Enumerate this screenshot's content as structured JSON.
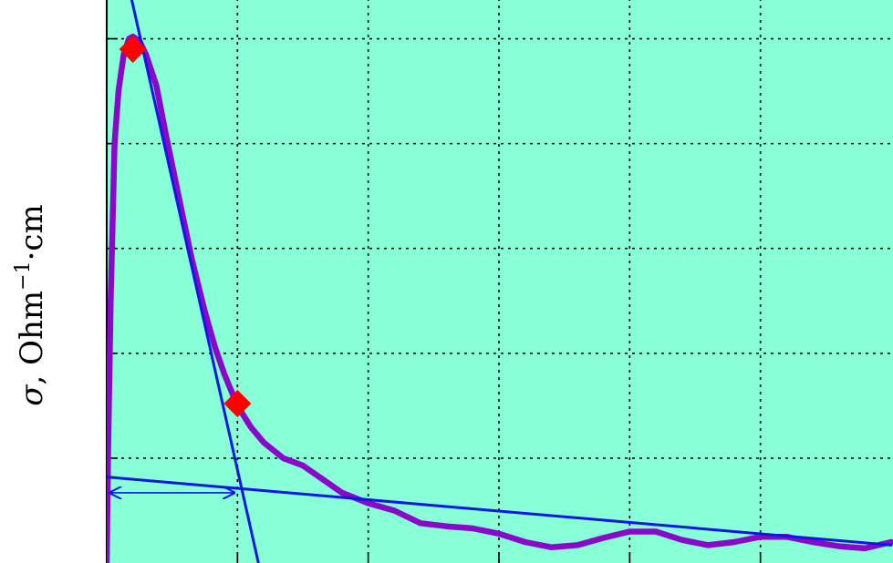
{
  "chart_data": {
    "type": "line",
    "ylabel": {
      "symbol": "σ",
      "text": ", Ohm",
      "superscript": "−1",
      "suffix": "·cm"
    },
    "xlim": [
      0,
      6
    ],
    "ylim": [
      0,
      5.5
    ],
    "grid": true,
    "background": "#88ffd6",
    "series": [
      {
        "color": "#8a08c9",
        "x": [
          0.0,
          0.01,
          0.03,
          0.06,
          0.09,
          0.13,
          0.17,
          0.2,
          0.25,
          0.3,
          0.38,
          0.45,
          0.55,
          0.65,
          0.75,
          0.83,
          0.9,
          1.0,
          1.1,
          1.2,
          1.35,
          1.5,
          1.65,
          1.8,
          2.0,
          2.2,
          2.4,
          2.6,
          2.8,
          3.0,
          3.2,
          3.4,
          3.6,
          3.8,
          4.0,
          4.2,
          4.4,
          4.6,
          4.8,
          5.0,
          5.2,
          5.4,
          5.6,
          5.8,
          6.0
        ],
        "y": [
          0.0,
          1.0,
          2.5,
          4.0,
          4.5,
          4.85,
          5.0,
          5.02,
          4.98,
          4.85,
          4.55,
          4.1,
          3.5,
          2.9,
          2.4,
          2.05,
          1.8,
          1.5,
          1.3,
          1.15,
          1.0,
          0.93,
          0.8,
          0.67,
          0.57,
          0.5,
          0.38,
          0.35,
          0.33,
          0.28,
          0.2,
          0.15,
          0.17,
          0.24,
          0.3,
          0.3,
          0.22,
          0.17,
          0.2,
          0.25,
          0.25,
          0.2,
          0.16,
          0.14,
          0.2
        ]
      },
      {
        "color": "#0a17e6",
        "x": [
          0.15,
          1.16
        ],
        "y": [
          5.6,
          0.0
        ]
      },
      {
        "color": "#0a17e6",
        "x": [
          0.0,
          6.0
        ],
        "y": [
          0.82,
          0.17
        ]
      }
    ],
    "markers": [
      {
        "x": 0.2,
        "y": 4.9,
        "color": "#ff0000",
        "shape": "diamond"
      },
      {
        "x": 1.0,
        "y": 1.52,
        "color": "#ff0000",
        "shape": "diamond"
      }
    ],
    "annotations": [
      {
        "type": "double-arrow",
        "x_start": 0.0,
        "x_end": 1.0,
        "y": 0.67,
        "color": "#0a17e6"
      }
    ]
  }
}
